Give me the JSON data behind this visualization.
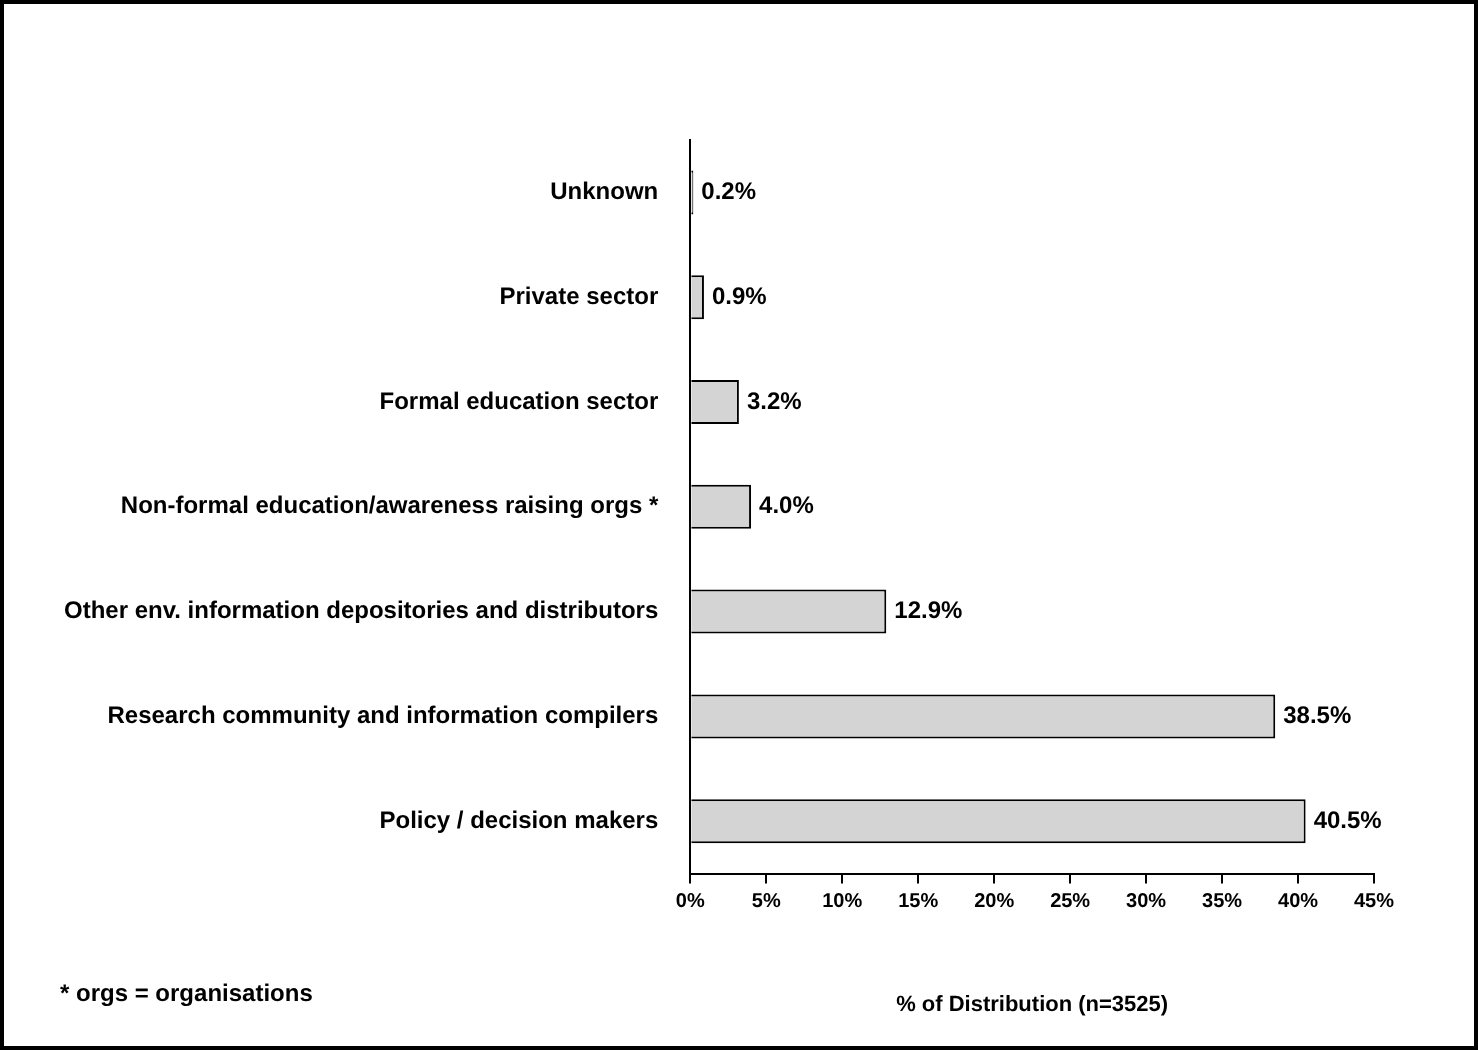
{
  "chart_data": {
    "type": "bar",
    "orientation": "horizontal",
    "categories": [
      "Unknown",
      "Private sector",
      "Formal education sector",
      "Non-formal education/awareness raising orgs *",
      "Other env. information depositories and distributors",
      "Research community and information compilers",
      "Policy / decision makers"
    ],
    "values": [
      0.2,
      0.9,
      3.2,
      4.0,
      12.9,
      38.5,
      40.5
    ],
    "value_labels": [
      "0.2%",
      "0.9%",
      "3.2%",
      "4.0%",
      "12.9%",
      "38.5%",
      "40.5%"
    ],
    "color": "#d4d4d4",
    "xlabel": "% of Distribution (n=3525)",
    "xlim": [
      0,
      45
    ],
    "xticks": [
      {
        "value": 0,
        "label": "0%"
      },
      {
        "value": 5,
        "label": "5%"
      },
      {
        "value": 10,
        "label": "10%"
      },
      {
        "value": 15,
        "label": "15%"
      },
      {
        "value": 20,
        "label": "20%"
      },
      {
        "value": 25,
        "label": "25%"
      },
      {
        "value": 30,
        "label": "30%"
      },
      {
        "value": 35,
        "label": "35%"
      },
      {
        "value": 40,
        "label": "40%"
      },
      {
        "value": 45,
        "label": "45%"
      }
    ],
    "annotations": [
      "* orgs = organisations"
    ],
    "grid": false,
    "legend": false
  }
}
